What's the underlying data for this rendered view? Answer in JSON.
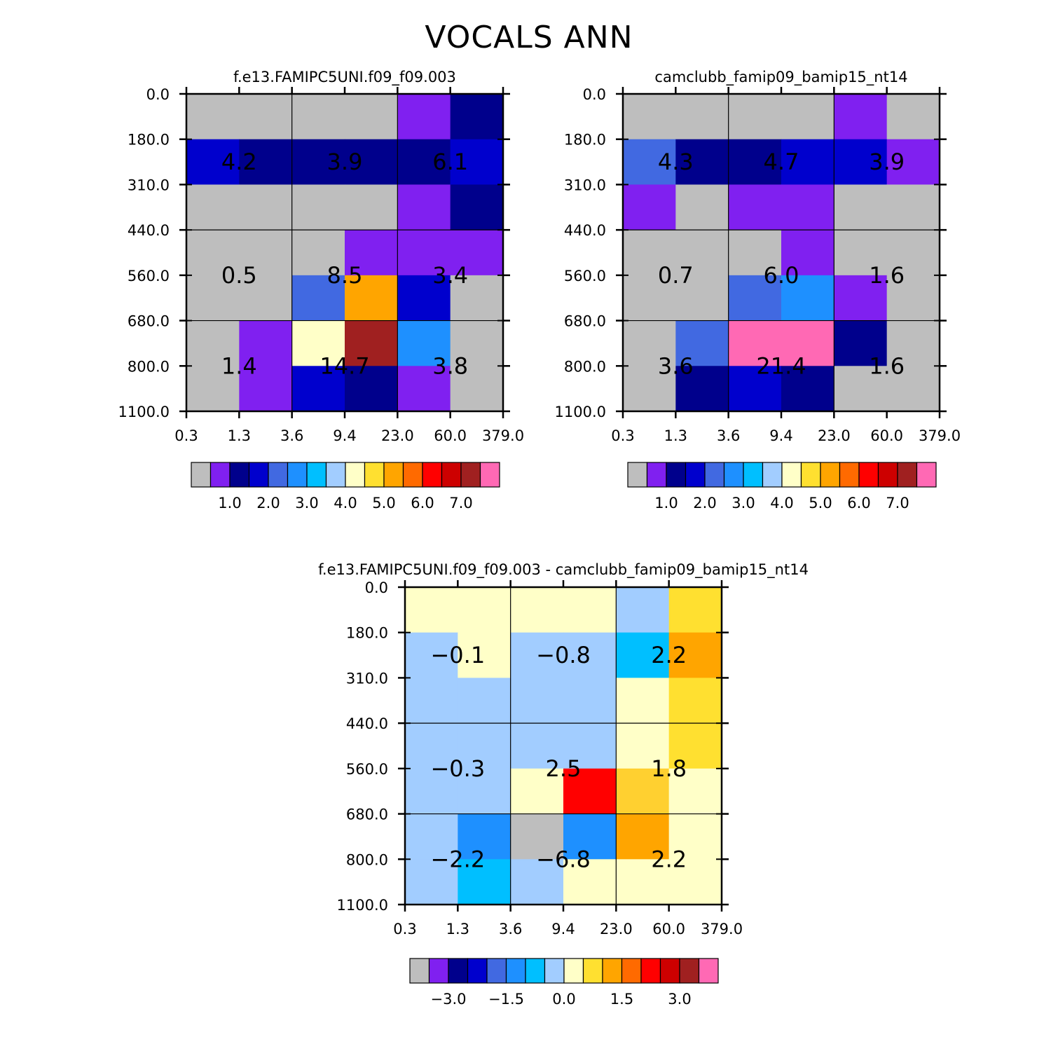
{
  "page_title": "VOCALS ANN",
  "chart_data": [
    {
      "type": "heatmap",
      "title": "f.e13.FAMIPC5UNI.f09_f09.003",
      "x_ticks": [
        "0.3",
        "1.3",
        "3.6",
        "9.4",
        "23.0",
        "60.0",
        "379.0"
      ],
      "y_ticks": [
        "0.0",
        "180.0",
        "310.0",
        "440.0",
        "560.0",
        "680.0",
        "800.0",
        "1100.0"
      ],
      "cell_colors": [
        [
          "#bebebe",
          "#bebebe",
          "#bebebe",
          "#bebebe",
          "#8020f0",
          "#00008c"
        ],
        [
          "#0000cd",
          "#00008c",
          "#00008c",
          "#00008c",
          "#00008c",
          "#0000cd"
        ],
        [
          "#bebebe",
          "#bebebe",
          "#bebebe",
          "#bebebe",
          "#8020f0",
          "#00008c"
        ],
        [
          "#bebebe",
          "#bebebe",
          "#bebebe",
          "#8020f0",
          "#8020f0",
          "#8020f0"
        ],
        [
          "#bebebe",
          "#bebebe",
          "#4169e1",
          "#ffa500",
          "#0000cd",
          "#bebebe"
        ],
        [
          "#bebebe",
          "#8020f0",
          "#ffffc8",
          "#a02020",
          "#1e90ff",
          "#bebebe"
        ],
        [
          "#bebebe",
          "#8020f0",
          "#0000cd",
          "#00008c",
          "#8020f0",
          "#bebebe"
        ]
      ],
      "group_labels": [
        [
          "4.2",
          "3.9",
          "6.1"
        ],
        [
          "0.5",
          "8.5",
          "3.4"
        ],
        [
          "1.4",
          "14.7",
          "3.8"
        ]
      ],
      "colorbar": {
        "colors": [
          "#bebebe",
          "#8020f0",
          "#00008c",
          "#0000cd",
          "#4169e1",
          "#1e90ff",
          "#00bfff",
          "#a2cdff",
          "#ffffc8",
          "#ffe030",
          "#ffa500",
          "#ff6a00",
          "#ff0000",
          "#cd0000",
          "#a02020",
          "#ff69b4"
        ],
        "labels": [
          "1.0",
          "2.0",
          "3.0",
          "4.0",
          "5.0",
          "6.0",
          "7.0"
        ],
        "label_boundaries": [
          2,
          4,
          6,
          8,
          10,
          12,
          14
        ]
      }
    },
    {
      "type": "heatmap",
      "title": "camclubb_famip09_bamip15_nt14",
      "x_ticks": [
        "0.3",
        "1.3",
        "3.6",
        "9.4",
        "23.0",
        "60.0",
        "379.0"
      ],
      "y_ticks": [
        "0.0",
        "180.0",
        "310.0",
        "440.0",
        "560.0",
        "680.0",
        "800.0",
        "1100.0"
      ],
      "cell_colors": [
        [
          "#bebebe",
          "#bebebe",
          "#bebebe",
          "#bebebe",
          "#8020f0",
          "#bebebe"
        ],
        [
          "#4169e1",
          "#00008c",
          "#00008c",
          "#0000cd",
          "#0000cd",
          "#8020f0"
        ],
        [
          "#8020f0",
          "#bebebe",
          "#8020f0",
          "#8020f0",
          "#bebebe",
          "#bebebe"
        ],
        [
          "#bebebe",
          "#bebebe",
          "#bebebe",
          "#8020f0",
          "#bebebe",
          "#bebebe"
        ],
        [
          "#bebebe",
          "#bebebe",
          "#4169e1",
          "#1e90ff",
          "#8020f0",
          "#bebebe"
        ],
        [
          "#bebebe",
          "#4169e1",
          "#ff69b4",
          "#ff69b4",
          "#00008c",
          "#bebebe"
        ],
        [
          "#bebebe",
          "#00008c",
          "#0000cd",
          "#00008c",
          "#bebebe",
          "#bebebe"
        ]
      ],
      "group_labels": [
        [
          "4.3",
          "4.7",
          "3.9"
        ],
        [
          "0.7",
          "6.0",
          "1.6"
        ],
        [
          "3.6",
          "21.4",
          "1.6"
        ]
      ],
      "colorbar": {
        "colors": [
          "#bebebe",
          "#8020f0",
          "#00008c",
          "#0000cd",
          "#4169e1",
          "#1e90ff",
          "#00bfff",
          "#a2cdff",
          "#ffffc8",
          "#ffe030",
          "#ffa500",
          "#ff6a00",
          "#ff0000",
          "#cd0000",
          "#a02020",
          "#ff69b4"
        ],
        "labels": [
          "1.0",
          "2.0",
          "3.0",
          "4.0",
          "5.0",
          "6.0",
          "7.0"
        ],
        "label_boundaries": [
          2,
          4,
          6,
          8,
          10,
          12,
          14
        ]
      }
    },
    {
      "type": "heatmap",
      "title": "f.e13.FAMIPC5UNI.f09_f09.003 - camclubb_famip09_bamip15_nt14",
      "x_ticks": [
        "0.3",
        "1.3",
        "3.6",
        "9.4",
        "23.0",
        "60.0",
        "379.0"
      ],
      "y_ticks": [
        "0.0",
        "180.0",
        "310.0",
        "440.0",
        "560.0",
        "680.0",
        "800.0",
        "1100.0"
      ],
      "cell_colors": [
        [
          "#ffffc8",
          "#ffffc8",
          "#ffffc8",
          "#ffffc8",
          "#a2cdff",
          "#ffe030"
        ],
        [
          "#a2cdff",
          "#ffffc8",
          "#a2cdff",
          "#a2cdff",
          "#00bfff",
          "#ffa500"
        ],
        [
          "#a2cdff",
          "#a2cdff",
          "#a2cdff",
          "#a2cdff",
          "#ffffc8",
          "#ffe030"
        ],
        [
          "#a2cdff",
          "#a2cdff",
          "#a2cdff",
          "#a2cdff",
          "#ffffc8",
          "#ffe030"
        ],
        [
          "#a2cdff",
          "#a2cdff",
          "#ffffc8",
          "#ff0000",
          "#ffd030",
          "#ffffc8"
        ],
        [
          "#a2cdff",
          "#1e90ff",
          "#bebebe",
          "#1e90ff",
          "#ffa500",
          "#ffffc8"
        ],
        [
          "#a2cdff",
          "#00bfff",
          "#a2cdff",
          "#ffffc8",
          "#ffffc8",
          "#ffffc8"
        ]
      ],
      "group_labels": [
        [
          "-0.1",
          "-0.8",
          "2.2"
        ],
        [
          "-0.3",
          "2.5",
          "1.8"
        ],
        [
          "-2.2",
          "-6.8",
          "2.2"
        ]
      ],
      "colorbar": {
        "colors": [
          "#bebebe",
          "#8020f0",
          "#00008c",
          "#0000cd",
          "#4169e1",
          "#1e90ff",
          "#00bfff",
          "#a2cdff",
          "#ffffc8",
          "#ffe030",
          "#ffa500",
          "#ff6a00",
          "#ff0000",
          "#cd0000",
          "#a02020",
          "#ff69b4"
        ],
        "labels": [
          "-3.0",
          "-1.5",
          "0.0",
          "1.5",
          "3.0"
        ],
        "label_boundaries": [
          2,
          5,
          8,
          11,
          14
        ]
      }
    }
  ]
}
